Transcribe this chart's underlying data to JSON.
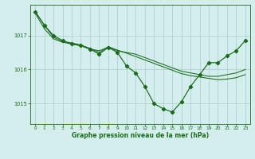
{
  "background_color": "#d4eeee",
  "grid_color": "#aacccc",
  "line_color": "#1a6b1a",
  "xlabel": "Graphe pression niveau de la mer (hPa)",
  "ylim": [
    1014.4,
    1017.9
  ],
  "xlim": [
    -0.5,
    23.5
  ],
  "yticks": [
    1015,
    1016,
    1017
  ],
  "xticks": [
    0,
    1,
    2,
    3,
    4,
    5,
    6,
    7,
    8,
    9,
    10,
    11,
    12,
    13,
    14,
    15,
    16,
    17,
    18,
    19,
    20,
    21,
    22,
    23
  ],
  "series_main_x": [
    0,
    1,
    2,
    3,
    4,
    5,
    6,
    7,
    8,
    9,
    10,
    11,
    12,
    13,
    14,
    15,
    16,
    17,
    18,
    19,
    20,
    21,
    22,
    23
  ],
  "series_main_y": [
    1017.7,
    1017.3,
    1017.0,
    1016.85,
    1016.75,
    1016.7,
    1016.6,
    1016.45,
    1016.65,
    1016.5,
    1016.1,
    1015.9,
    1015.5,
    1015.0,
    1014.85,
    1014.75,
    1015.05,
    1015.5,
    1015.85,
    1016.2,
    1016.2,
    1016.4,
    1016.55,
    1016.85
  ],
  "series_line2_x": [
    0,
    1,
    2,
    3,
    4,
    5,
    6,
    7,
    8,
    9,
    10,
    11,
    12,
    13,
    14,
    15,
    16,
    17,
    18,
    19,
    20,
    21,
    22,
    23
  ],
  "series_line2_y": [
    1017.65,
    1017.2,
    1016.9,
    1016.8,
    1016.75,
    1016.7,
    1016.6,
    1016.55,
    1016.65,
    1016.55,
    1016.5,
    1016.45,
    1016.35,
    1016.25,
    1016.15,
    1016.05,
    1015.95,
    1015.9,
    1015.85,
    1015.8,
    1015.8,
    1015.85,
    1015.9,
    1016.0
  ],
  "series_line3_x": [
    0,
    1,
    2,
    3,
    4,
    5,
    6,
    7,
    8,
    9,
    10,
    11,
    12,
    13,
    14,
    15,
    16,
    17,
    18,
    19,
    20,
    21,
    22,
    23
  ],
  "series_line3_y": [
    1017.7,
    1017.3,
    1016.95,
    1016.82,
    1016.78,
    1016.72,
    1016.62,
    1016.5,
    1016.67,
    1016.57,
    1016.48,
    1016.38,
    1016.28,
    1016.18,
    1016.08,
    1015.98,
    1015.88,
    1015.82,
    1015.78,
    1015.74,
    1015.7,
    1015.72,
    1015.76,
    1015.85
  ]
}
